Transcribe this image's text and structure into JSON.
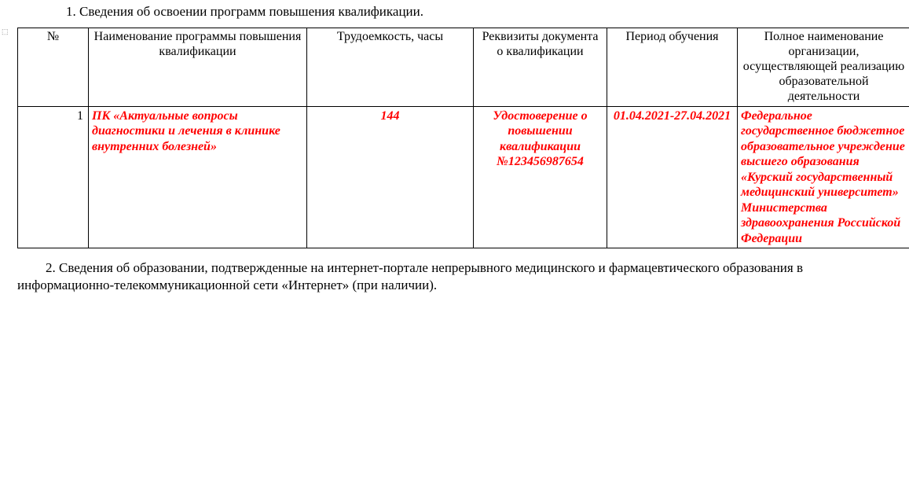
{
  "heading1": "1. Сведения об освоении программ повышения квалификации.",
  "heading2": "2. Сведения об образовании, подтвержденные на интернет-портале непрерывного медицинского и фармацевтического образования в информационно-телекоммуникационной сети «Интернет» (при наличии).",
  "table": {
    "columns": {
      "c1": "№",
      "c2": "Наименование программы повышения квалификации",
      "c3": "Трудоемкость, часы",
      "c4": "Реквизиты документа о квалификации",
      "c5": "Период обучения",
      "c6": "Полное наименование организации, осуществляющей реализацию образовательной деятельности"
    },
    "row": {
      "num": "1",
      "program": "ПК «Актуальные вопросы диагностики и лечения в клинике внутренних болезней»",
      "hours": "144",
      "doc": "Удостоверение о повышении квалификации №123456987654",
      "period": "01.04.2021-27.04.2021",
      "org": "Федеральное государственное бюджетное образовательное учреждение высшего образования «Курский государственный медицинский университет» Министерства здравоохранения Российской Федерации"
    }
  },
  "style": {
    "highlight_color": "#ff0000",
    "text_color": "#000000",
    "border_color": "#000000",
    "font_family": "Times New Roman",
    "base_font_size_pt": 12,
    "highlight_font_weight": "bold",
    "highlight_font_style": "italic"
  }
}
